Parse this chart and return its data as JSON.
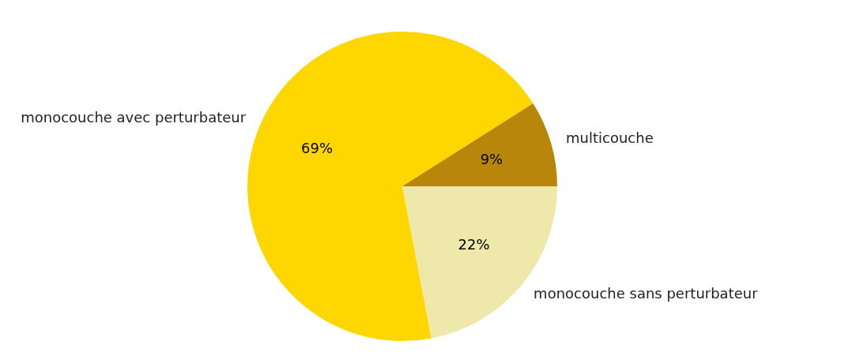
{
  "chart_data": {
    "type": "pie",
    "categories": [
      "multicouche",
      "monocouche avec perturbateur",
      "monocouche sans perturbateur"
    ],
    "values": [
      9,
      69,
      22
    ],
    "value_labels": [
      "9%",
      "69%",
      "22%"
    ],
    "colors": [
      "#b8860b",
      "#ffd700",
      "#eee8aa"
    ]
  }
}
